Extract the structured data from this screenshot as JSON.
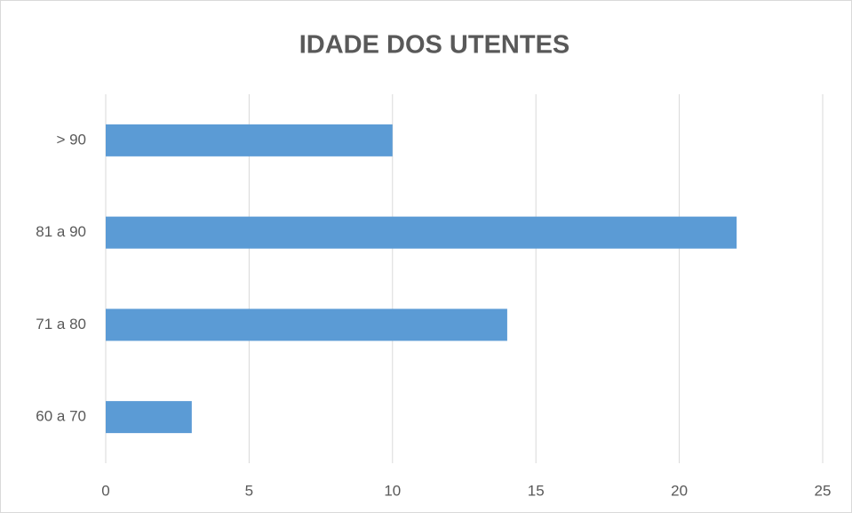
{
  "chart_data": {
    "type": "bar",
    "orientation": "horizontal",
    "title": "IDADE DOS UTENTES",
    "categories": [
      "60 a 70",
      "71 a 80",
      "81 a 90",
      "> 90"
    ],
    "values": [
      3,
      14,
      22,
      10
    ],
    "color": "#5b9bd5",
    "xlim": [
      0,
      25
    ],
    "xticks": [
      0,
      5,
      10,
      15,
      20,
      25
    ],
    "grid": true
  }
}
